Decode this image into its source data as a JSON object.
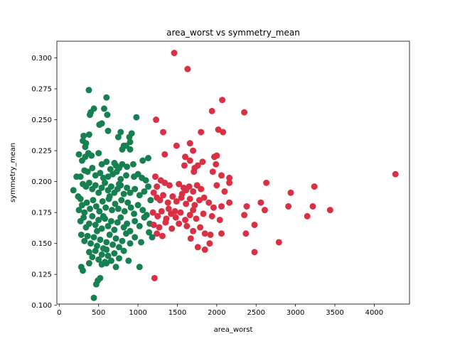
{
  "chart_data": {
    "type": "scatter",
    "title": "area_worst vs symmetry_mean",
    "xlabel": "area_worst",
    "ylabel": "symmetry_mean",
    "xlim": [
      -30,
      4448
    ],
    "ylim": [
      0.101,
      0.3135
    ],
    "xticks": [
      0,
      500,
      1000,
      1500,
      2000,
      2500,
      3000,
      3500,
      4000
    ],
    "yticks": [
      0.1,
      0.125,
      0.15,
      0.175,
      0.2,
      0.225,
      0.25,
      0.275,
      0.3
    ],
    "ytick_labels": [
      "0.100",
      "0.125",
      "0.150",
      "0.175",
      "0.200",
      "0.225",
      "0.250",
      "0.275",
      "0.300"
    ],
    "grid": false,
    "legend": "none",
    "colors": {
      "benign": "#178050",
      "malignant": "#da3043"
    },
    "series": [
      {
        "color": "#178050",
        "points": [
          [
            376,
            0.274
          ],
          [
            600,
            0.268
          ],
          [
            570,
            0.259
          ],
          [
            980,
            0.252
          ],
          [
            390,
            0.254
          ],
          [
            400,
            0.256
          ],
          [
            440,
            0.259
          ],
          [
            610,
            0.254
          ],
          [
            540,
            0.247
          ],
          [
            510,
            0.246
          ],
          [
            620,
            0.241
          ],
          [
            780,
            0.24
          ],
          [
            920,
            0.239
          ],
          [
            750,
            0.236
          ],
          [
            380,
            0.238
          ],
          [
            310,
            0.237
          ],
          [
            300,
            0.233
          ],
          [
            340,
            0.231
          ],
          [
            330,
            0.228
          ],
          [
            890,
            0.236
          ],
          [
            900,
            0.232
          ],
          [
            820,
            0.229
          ],
          [
            800,
            0.226
          ],
          [
            900,
            0.226
          ],
          [
            850,
            0.229
          ],
          [
            250,
            0.222
          ],
          [
            290,
            0.217
          ],
          [
            330,
            0.22
          ],
          [
            370,
            0.223
          ],
          [
            410,
            0.221
          ],
          [
            500,
            0.223
          ],
          [
            540,
            0.214
          ],
          [
            600,
            0.216
          ],
          [
            650,
            0.21
          ],
          [
            720,
            0.213
          ],
          [
            760,
            0.211
          ],
          [
            800,
            0.214
          ],
          [
            860,
            0.212
          ],
          [
            940,
            0.214
          ],
          [
            1000,
            0.206
          ],
          [
            1060,
            0.217
          ],
          [
            1130,
            0.219
          ],
          [
            220,
            0.204
          ],
          [
            270,
            0.204
          ],
          [
            320,
            0.209
          ],
          [
            360,
            0.208
          ],
          [
            420,
            0.211
          ],
          [
            460,
            0.205
          ],
          [
            520,
            0.207
          ],
          [
            560,
            0.203
          ],
          [
            620,
            0.204
          ],
          [
            680,
            0.206
          ],
          [
            730,
            0.208
          ],
          [
            780,
            0.202
          ],
          [
            850,
            0.205
          ],
          [
            950,
            0.204
          ],
          [
            1050,
            0.203
          ],
          [
            1100,
            0.201
          ],
          [
            180,
            0.193
          ],
          [
            240,
            0.188
          ],
          [
            270,
            0.186
          ],
          [
            300,
            0.198
          ],
          [
            340,
            0.196
          ],
          [
            380,
            0.199
          ],
          [
            420,
            0.194
          ],
          [
            460,
            0.197
          ],
          [
            500,
            0.191
          ],
          [
            540,
            0.195
          ],
          [
            580,
            0.199
          ],
          [
            620,
            0.193
          ],
          [
            660,
            0.196
          ],
          [
            700,
            0.191
          ],
          [
            740,
            0.194
          ],
          [
            780,
            0.197
          ],
          [
            820,
            0.19
          ],
          [
            860,
            0.195
          ],
          [
            900,
            0.191
          ],
          [
            960,
            0.194
          ],
          [
            1020,
            0.189
          ],
          [
            1080,
            0.192
          ],
          [
            1130,
            0.196
          ],
          [
            250,
            0.177
          ],
          [
            290,
            0.181
          ],
          [
            320,
            0.175
          ],
          [
            350,
            0.183
          ],
          [
            390,
            0.178
          ],
          [
            430,
            0.185
          ],
          [
            470,
            0.18
          ],
          [
            510,
            0.176
          ],
          [
            550,
            0.184
          ],
          [
            590,
            0.179
          ],
          [
            630,
            0.186
          ],
          [
            670,
            0.177
          ],
          [
            710,
            0.182
          ],
          [
            750,
            0.178
          ],
          [
            790,
            0.185
          ],
          [
            830,
            0.176
          ],
          [
            870,
            0.183
          ],
          [
            910,
            0.179
          ],
          [
            950,
            0.174
          ],
          [
            1000,
            0.181
          ],
          [
            1060,
            0.177
          ],
          [
            1110,
            0.173
          ],
          [
            1160,
            0.185
          ],
          [
            270,
            0.168
          ],
          [
            310,
            0.171
          ],
          [
            340,
            0.163
          ],
          [
            380,
            0.166
          ],
          [
            420,
            0.172
          ],
          [
            460,
            0.165
          ],
          [
            500,
            0.169
          ],
          [
            540,
            0.162
          ],
          [
            580,
            0.17
          ],
          [
            620,
            0.164
          ],
          [
            660,
            0.168
          ],
          [
            700,
            0.161
          ],
          [
            740,
            0.167
          ],
          [
            780,
            0.171
          ],
          [
            820,
            0.163
          ],
          [
            860,
            0.166
          ],
          [
            900,
            0.16
          ],
          [
            960,
            0.168
          ],
          [
            1020,
            0.164
          ],
          [
            1080,
            0.171
          ],
          [
            1150,
            0.166
          ],
          [
            280,
            0.157
          ],
          [
            320,
            0.152
          ],
          [
            360,
            0.156
          ],
          [
            400,
            0.15
          ],
          [
            440,
            0.155
          ],
          [
            480,
            0.148
          ],
          [
            520,
            0.153
          ],
          [
            560,
            0.146
          ],
          [
            600,
            0.151
          ],
          [
            640,
            0.157
          ],
          [
            680,
            0.149
          ],
          [
            720,
            0.154
          ],
          [
            760,
            0.147
          ],
          [
            800,
            0.152
          ],
          [
            850,
            0.158
          ],
          [
            900,
            0.15
          ],
          [
            960,
            0.155
          ],
          [
            1040,
            0.151
          ],
          [
            1140,
            0.159
          ],
          [
            1180,
            0.155
          ],
          [
            380,
            0.143
          ],
          [
            420,
            0.139
          ],
          [
            460,
            0.144
          ],
          [
            500,
            0.137
          ],
          [
            540,
            0.141
          ],
          [
            580,
            0.135
          ],
          [
            620,
            0.14
          ],
          [
            660,
            0.136
          ],
          [
            700,
            0.142
          ],
          [
            760,
            0.138
          ],
          [
            820,
            0.144
          ],
          [
            880,
            0.136
          ],
          [
            380,
            0.134
          ],
          [
            280,
            0.131
          ],
          [
            300,
            0.128
          ],
          [
            540,
            0.133
          ],
          [
            600,
            0.134
          ],
          [
            720,
            0.131
          ],
          [
            1020,
            0.131
          ],
          [
            520,
            0.122
          ],
          [
            470,
            0.117
          ],
          [
            490,
            0.12
          ],
          [
            440,
            0.106
          ],
          [
            760,
            0.198
          ],
          [
            700,
            0.215
          ],
          [
            640,
            0.188
          ],
          [
            560,
            0.172
          ],
          [
            480,
            0.16
          ],
          [
            600,
            0.145
          ]
        ]
      },
      {
        "color": "#da3043",
        "points": [
          [
            1460,
            0.304
          ],
          [
            1630,
            0.291
          ],
          [
            2070,
            0.266
          ],
          [
            2350,
            0.256
          ],
          [
            1940,
            0.257
          ],
          [
            1230,
            0.25
          ],
          [
            1320,
            0.24
          ],
          [
            2020,
            0.242
          ],
          [
            2080,
            0.24
          ],
          [
            1800,
            0.24
          ],
          [
            1660,
            0.231
          ],
          [
            1490,
            0.229
          ],
          [
            1700,
            0.225
          ],
          [
            1340,
            0.222
          ],
          [
            1600,
            0.22
          ],
          [
            1660,
            0.217
          ],
          [
            1720,
            0.211
          ],
          [
            1760,
            0.213
          ],
          [
            1820,
            0.216
          ],
          [
            1970,
            0.22
          ],
          [
            2000,
            0.221
          ],
          [
            1990,
            0.214
          ],
          [
            1950,
            0.208
          ],
          [
            1590,
            0.213
          ],
          [
            1710,
            0.208
          ],
          [
            1220,
            0.204
          ],
          [
            1290,
            0.201
          ],
          [
            1340,
            0.199
          ],
          [
            1400,
            0.197
          ],
          [
            1240,
            0.196
          ],
          [
            1520,
            0.198
          ],
          [
            1580,
            0.195
          ],
          [
            1610,
            0.193
          ],
          [
            1650,
            0.196
          ],
          [
            1700,
            0.192
          ],
          [
            1750,
            0.197
          ],
          [
            1800,
            0.194
          ],
          [
            2000,
            0.197
          ],
          [
            2060,
            0.205
          ],
          [
            2160,
            0.203
          ],
          [
            2160,
            0.199
          ],
          [
            2630,
            0.199
          ],
          [
            4270,
            0.206
          ],
          [
            2100,
            0.192
          ],
          [
            1200,
            0.191
          ],
          [
            1240,
            0.187
          ],
          [
            1280,
            0.185
          ],
          [
            1320,
            0.189
          ],
          [
            1380,
            0.183
          ],
          [
            1440,
            0.188
          ],
          [
            1490,
            0.184
          ],
          [
            1550,
            0.187
          ],
          [
            1610,
            0.182
          ],
          [
            1660,
            0.186
          ],
          [
            1720,
            0.181
          ],
          [
            1780,
            0.185
          ],
          [
            1840,
            0.187
          ],
          [
            1900,
            0.183
          ],
          [
            1960,
            0.179
          ],
          [
            2060,
            0.18
          ],
          [
            2160,
            0.183
          ],
          [
            2350,
            0.173
          ],
          [
            2380,
            0.18
          ],
          [
            2560,
            0.183
          ],
          [
            2610,
            0.177
          ],
          [
            2940,
            0.191
          ],
          [
            3240,
            0.196
          ],
          [
            3220,
            0.18
          ],
          [
            3440,
            0.177
          ],
          [
            2910,
            0.18
          ],
          [
            3150,
            0.172
          ],
          [
            1190,
            0.175
          ],
          [
            1250,
            0.172
          ],
          [
            1300,
            0.176
          ],
          [
            1360,
            0.17
          ],
          [
            1420,
            0.174
          ],
          [
            1480,
            0.171
          ],
          [
            1540,
            0.175
          ],
          [
            1600,
            0.169
          ],
          [
            1660,
            0.173
          ],
          [
            1740,
            0.17
          ],
          [
            1830,
            0.174
          ],
          [
            1940,
            0.172
          ],
          [
            2040,
            0.169
          ],
          [
            1200,
            0.165
          ],
          [
            1270,
            0.163
          ],
          [
            1350,
            0.167
          ],
          [
            1430,
            0.162
          ],
          [
            1520,
            0.166
          ],
          [
            1620,
            0.164
          ],
          [
            1700,
            0.16
          ],
          [
            1790,
            0.163
          ],
          [
            2480,
            0.165
          ],
          [
            1240,
            0.158
          ],
          [
            1310,
            0.156
          ],
          [
            1850,
            0.158
          ],
          [
            1920,
            0.157
          ],
          [
            2060,
            0.158
          ],
          [
            2370,
            0.158
          ],
          [
            1670,
            0.154
          ],
          [
            1910,
            0.15
          ],
          [
            2790,
            0.151
          ],
          [
            1760,
            0.147
          ],
          [
            1850,
            0.145
          ],
          [
            2480,
            0.143
          ],
          [
            1210,
            0.122
          ],
          [
            1470,
            0.176
          ],
          [
            1390,
            0.178
          ],
          [
            1560,
            0.19
          ],
          [
            1700,
            0.177
          ]
        ]
      }
    ]
  }
}
